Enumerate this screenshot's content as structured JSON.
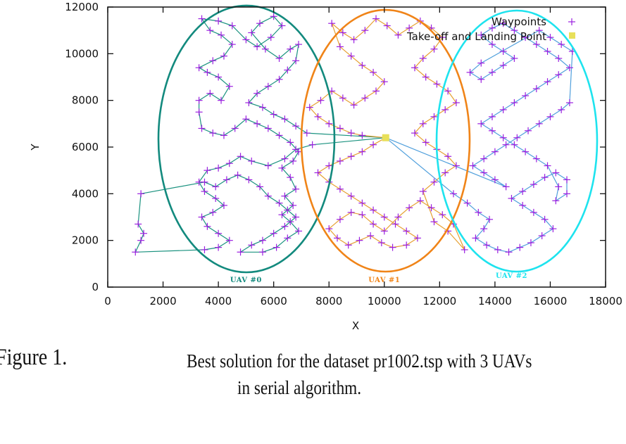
{
  "caption": {
    "figure_number": "Figure 1.",
    "line1": "Best solution for the dataset pr1002.tsp with 3 UAVs",
    "line2": "in serial algorithm."
  },
  "colors": {
    "waypoint": "#9b1fe0",
    "takeoff": "#e8e05a",
    "uav0": "#138a7e",
    "uav1": "#f08418",
    "uav2": "#1ee3ee",
    "uav0_path": "#1a927f",
    "uav1_path": "#e6a032",
    "uav2_path": "#4f9fdc",
    "axis": "#111111"
  },
  "chart_data": {
    "type": "scatter",
    "title": "",
    "xlabel": "X",
    "ylabel": "Y",
    "xlim": [
      0,
      18000
    ],
    "ylim": [
      0,
      12000
    ],
    "xticks": [
      0,
      2000,
      4000,
      6000,
      8000,
      10000,
      12000,
      14000,
      16000,
      18000
    ],
    "yticks": [
      0,
      2000,
      4000,
      6000,
      8000,
      10000,
      12000
    ],
    "xtick_labels": [
      "0",
      "2000",
      "4000",
      "6000",
      "8000",
      "10000",
      "12000",
      "14000",
      "16000",
      "18000"
    ],
    "ytick_labels": [
      "0",
      "2000",
      "4000",
      "6000",
      "8000",
      "10000",
      "12000"
    ],
    "grid": false,
    "legend": {
      "placement": "top-right",
      "entries": [
        {
          "label": "Waypoints",
          "marker": "plus"
        },
        {
          "label": "Take-off and Landing Point",
          "marker": "square"
        }
      ]
    },
    "takeoff_point": {
      "x": 10050,
      "y": 6400
    },
    "clusters": [
      {
        "name": "UAV #0",
        "label_pos": {
          "x": 5000,
          "y": 300
        },
        "ellipse": {
          "cx": 5015,
          "cy": 6347,
          "rx": 3182,
          "ry": 5714
        }
      },
      {
        "name": "UAV #1",
        "label_pos": {
          "x": 10000,
          "y": 300
        },
        "ellipse": {
          "cx": 10044,
          "cy": 6271,
          "rx": 3042,
          "ry": 5608
        }
      },
      {
        "name": "UAV #2",
        "label_pos": {
          "x": 14600,
          "y": 480
        },
        "ellipse": {
          "cx": 14792,
          "cy": 6256,
          "rx": 2902,
          "ry": 5593
        }
      }
    ],
    "series": [
      {
        "name": "UAV #0 route",
        "points": [
          [
            10050,
            6400
          ],
          [
            7400,
            6100
          ],
          [
            6800,
            5900
          ],
          [
            6400,
            5500
          ],
          [
            5800,
            5200
          ],
          [
            5200,
            5400
          ],
          [
            4800,
            5600
          ],
          [
            4400,
            5300
          ],
          [
            4000,
            5100
          ],
          [
            3600,
            5000
          ],
          [
            3300,
            4500
          ],
          [
            3500,
            4100
          ],
          [
            3900,
            3800
          ],
          [
            4200,
            3500
          ],
          [
            3800,
            3200
          ],
          [
            3400,
            3000
          ],
          [
            3600,
            2600
          ],
          [
            4000,
            2300
          ],
          [
            4400,
            2000
          ],
          [
            4000,
            1700
          ],
          [
            3500,
            1600
          ],
          [
            1000,
            1500
          ],
          [
            1200,
            2000
          ],
          [
            1300,
            2300
          ],
          [
            1100,
            2700
          ],
          [
            1200,
            4000
          ],
          [
            3500,
            4500
          ],
          [
            3900,
            4300
          ],
          [
            4300,
            4600
          ],
          [
            4700,
            4800
          ],
          [
            5100,
            4600
          ],
          [
            5500,
            4300
          ],
          [
            5800,
            3900
          ],
          [
            6200,
            3600
          ],
          [
            6500,
            3300
          ],
          [
            6800,
            3000
          ],
          [
            6400,
            2600
          ],
          [
            6000,
            2300
          ],
          [
            5600,
            2000
          ],
          [
            5200,
            1800
          ],
          [
            4800,
            1500
          ],
          [
            5600,
            1500
          ],
          [
            6100,
            1700
          ],
          [
            6500,
            2100
          ],
          [
            6900,
            2400
          ],
          [
            6600,
            2800
          ],
          [
            6300,
            3100
          ],
          [
            6700,
            3500
          ],
          [
            6400,
            3900
          ],
          [
            6800,
            4200
          ],
          [
            6600,
            4700
          ],
          [
            6300,
            5100
          ],
          [
            6700,
            5400
          ],
          [
            6900,
            5800
          ],
          [
            6600,
            6200
          ],
          [
            6200,
            6500
          ],
          [
            5800,
            6800
          ],
          [
            5400,
            7000
          ],
          [
            5000,
            7200
          ],
          [
            4600,
            6800
          ],
          [
            4200,
            6500
          ],
          [
            3800,
            6600
          ],
          [
            3400,
            6800
          ],
          [
            3300,
            7500
          ],
          [
            3300,
            8000
          ],
          [
            3700,
            8300
          ],
          [
            4100,
            8000
          ],
          [
            4400,
            8600
          ],
          [
            4000,
            9000
          ],
          [
            3600,
            9200
          ],
          [
            3300,
            9400
          ],
          [
            3800,
            9700
          ],
          [
            4200,
            9900
          ],
          [
            4500,
            10400
          ],
          [
            4100,
            10800
          ],
          [
            3700,
            11000
          ],
          [
            3400,
            11500
          ],
          [
            4000,
            11400
          ],
          [
            4500,
            11200
          ],
          [
            5000,
            10600
          ],
          [
            5400,
            10300
          ],
          [
            5900,
            10700
          ],
          [
            6300,
            11200
          ],
          [
            6000,
            11600
          ],
          [
            5500,
            11300
          ],
          [
            5200,
            10900
          ],
          [
            5700,
            10200
          ],
          [
            6200,
            9800
          ],
          [
            6600,
            10200
          ],
          [
            6900,
            10400
          ],
          [
            6800,
            9700
          ],
          [
            6500,
            9300
          ],
          [
            6200,
            8900
          ],
          [
            5800,
            8600
          ],
          [
            5400,
            8300
          ],
          [
            5100,
            7900
          ],
          [
            5600,
            7700
          ],
          [
            6000,
            7400
          ],
          [
            6400,
            7200
          ],
          [
            6800,
            6900
          ],
          [
            7200,
            6600
          ],
          [
            10050,
            6400
          ]
        ]
      },
      {
        "name": "UAV #1 route",
        "points": [
          [
            10050,
            6400
          ],
          [
            9600,
            6100
          ],
          [
            9200,
            5800
          ],
          [
            8800,
            5600
          ],
          [
            8400,
            5400
          ],
          [
            8000,
            5200
          ],
          [
            7600,
            4900
          ],
          [
            8000,
            4500
          ],
          [
            8400,
            4200
          ],
          [
            8800,
            3900
          ],
          [
            9200,
            3600
          ],
          [
            9600,
            3300
          ],
          [
            10000,
            3000
          ],
          [
            10400,
            2700
          ],
          [
            10800,
            2400
          ],
          [
            11200,
            2100
          ],
          [
            10800,
            1800
          ],
          [
            10300,
            1700
          ],
          [
            9900,
            1900
          ],
          [
            9500,
            2200
          ],
          [
            9100,
            2000
          ],
          [
            8700,
            1800
          ],
          [
            8300,
            2100
          ],
          [
            8000,
            2500
          ],
          [
            8400,
            2900
          ],
          [
            8800,
            3200
          ],
          [
            9200,
            3100
          ],
          [
            9600,
            2700
          ],
          [
            10000,
            2400
          ],
          [
            10500,
            3000
          ],
          [
            10900,
            3400
          ],
          [
            11300,
            3700
          ],
          [
            11700,
            3400
          ],
          [
            12100,
            3100
          ],
          [
            12500,
            2700
          ],
          [
            12900,
            1600
          ],
          [
            12300,
            2400
          ],
          [
            11800,
            2800
          ],
          [
            11400,
            4100
          ],
          [
            11800,
            4500
          ],
          [
            12200,
            4900
          ],
          [
            12600,
            5200
          ],
          [
            12300,
            5600
          ],
          [
            11900,
            5900
          ],
          [
            11500,
            6200
          ],
          [
            11100,
            6600
          ],
          [
            11400,
            7000
          ],
          [
            11800,
            7300
          ],
          [
            12200,
            7600
          ],
          [
            12600,
            7900
          ],
          [
            12300,
            8400
          ],
          [
            11900,
            8700
          ],
          [
            11500,
            9000
          ],
          [
            11100,
            9400
          ],
          [
            11400,
            9800
          ],
          [
            11800,
            10200
          ],
          [
            12100,
            10700
          ],
          [
            11700,
            11100
          ],
          [
            11300,
            11400
          ],
          [
            10900,
            11100
          ],
          [
            10500,
            10800
          ],
          [
            10100,
            11200
          ],
          [
            9700,
            11500
          ],
          [
            9300,
            11000
          ],
          [
            8900,
            10600
          ],
          [
            8500,
            10900
          ],
          [
            8100,
            11300
          ],
          [
            8400,
            10300
          ],
          [
            8800,
            9900
          ],
          [
            9200,
            9500
          ],
          [
            9600,
            9200
          ],
          [
            10000,
            8800
          ],
          [
            9700,
            8400
          ],
          [
            9300,
            8100
          ],
          [
            8900,
            7800
          ],
          [
            8500,
            8100
          ],
          [
            8100,
            8400
          ],
          [
            7700,
            8000
          ],
          [
            7300,
            7700
          ],
          [
            7600,
            7300
          ],
          [
            8000,
            7000
          ],
          [
            8400,
            6800
          ],
          [
            8800,
            6600
          ],
          [
            9200,
            6500
          ],
          [
            10050,
            6400
          ]
        ]
      },
      {
        "name": "UAV #2 route",
        "points": [
          [
            10050,
            6400
          ],
          [
            12500,
            4000
          ],
          [
            13000,
            3600
          ],
          [
            13400,
            3200
          ],
          [
            13800,
            2900
          ],
          [
            13600,
            2500
          ],
          [
            13300,
            2100
          ],
          [
            13700,
            1800
          ],
          [
            14100,
            1600
          ],
          [
            14500,
            1500
          ],
          [
            14900,
            1700
          ],
          [
            15300,
            1900
          ],
          [
            15700,
            2200
          ],
          [
            16100,
            2500
          ],
          [
            15800,
            2900
          ],
          [
            15400,
            3200
          ],
          [
            15000,
            3500
          ],
          [
            14600,
            3800
          ],
          [
            15000,
            4100
          ],
          [
            15400,
            4400
          ],
          [
            15800,
            4700
          ],
          [
            16200,
            4900
          ],
          [
            16600,
            4600
          ],
          [
            16600,
            4000
          ],
          [
            16200,
            3700
          ],
          [
            16300,
            4300
          ],
          [
            15900,
            5200
          ],
          [
            15500,
            5500
          ],
          [
            15100,
            5800
          ],
          [
            14700,
            6100
          ],
          [
            14300,
            6400
          ],
          [
            13900,
            6700
          ],
          [
            13500,
            7000
          ],
          [
            13900,
            7300
          ],
          [
            14300,
            7600
          ],
          [
            14700,
            7900
          ],
          [
            15100,
            8200
          ],
          [
            15500,
            8500
          ],
          [
            15900,
            8800
          ],
          [
            16300,
            9100
          ],
          [
            16700,
            9400
          ],
          [
            16300,
            9800
          ],
          [
            15900,
            10100
          ],
          [
            15500,
            10400
          ],
          [
            15100,
            10700
          ],
          [
            14700,
            11000
          ],
          [
            14300,
            11300
          ],
          [
            13900,
            11100
          ],
          [
            13500,
            10800
          ],
          [
            13900,
            10400
          ],
          [
            14300,
            10100
          ],
          [
            14700,
            9800
          ],
          [
            14300,
            9500
          ],
          [
            13900,
            9200
          ],
          [
            13500,
            8900
          ],
          [
            13100,
            9200
          ],
          [
            13500,
            9600
          ],
          [
            15600,
            11000
          ],
          [
            16000,
            10700
          ],
          [
            16400,
            10400
          ],
          [
            16800,
            10100
          ],
          [
            16700,
            7900
          ],
          [
            16400,
            7600
          ],
          [
            16000,
            7300
          ],
          [
            15600,
            7000
          ],
          [
            15200,
            6700
          ],
          [
            14800,
            6400
          ],
          [
            14400,
            6100
          ],
          [
            14000,
            5800
          ],
          [
            13600,
            5500
          ],
          [
            13200,
            5200
          ],
          [
            13600,
            4900
          ],
          [
            14000,
            4600
          ],
          [
            14400,
            4300
          ],
          [
            10050,
            6400
          ]
        ]
      }
    ]
  }
}
